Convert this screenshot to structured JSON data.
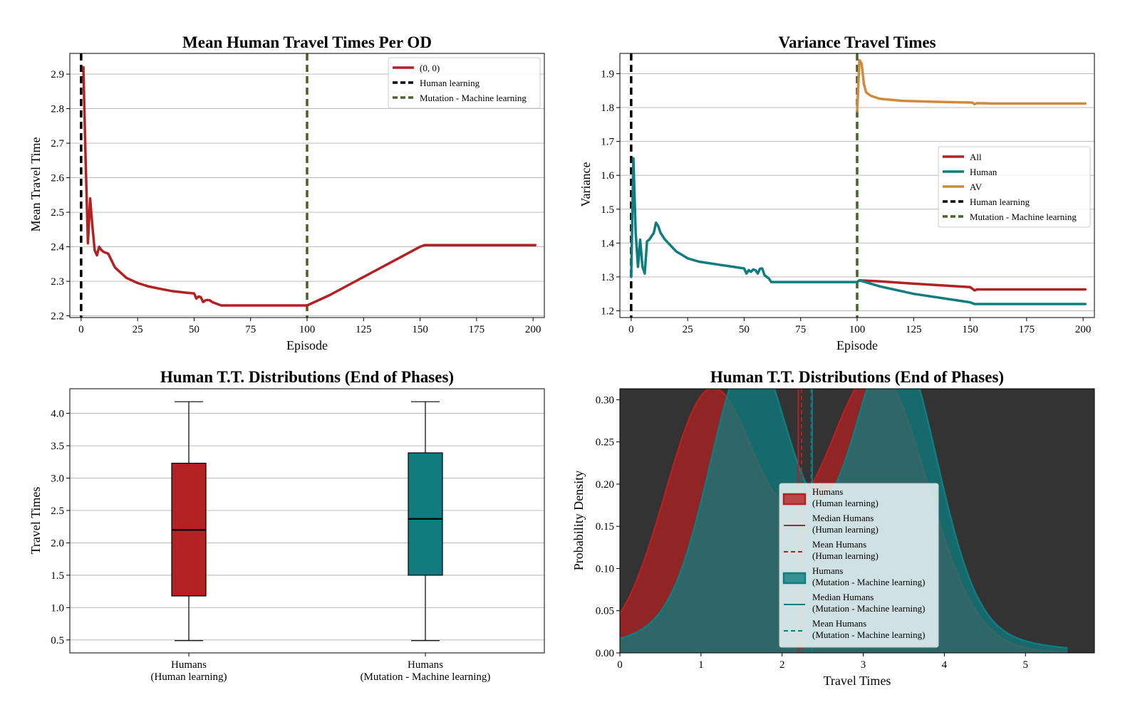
{
  "colors": {
    "all": "#b22222",
    "human": "#0f7d80",
    "av": "#d08a3e",
    "human_learning_line": "#000000",
    "mutation_line": "#4a6128",
    "grid": "#b0b0b0",
    "dark_bg": "#333333"
  },
  "chart_data": [
    {
      "type": "line",
      "title": "Mean Human Travel Times Per OD",
      "xlabel": "Episode",
      "ylabel": "Mean Travel Time",
      "xlim": [
        -5,
        205
      ],
      "ylim": [
        2.195,
        2.96
      ],
      "xticks": [
        0,
        25,
        50,
        75,
        100,
        125,
        150,
        175,
        200
      ],
      "yticks": [
        2.2,
        2.3,
        2.4,
        2.5,
        2.6,
        2.7,
        2.8,
        2.9
      ],
      "xtick_labels": [
        "0",
        "25",
        "50",
        "75",
        "100",
        "125",
        "150",
        "175",
        "200"
      ],
      "ytick_labels": [
        "2.2",
        "2.3",
        "2.4",
        "2.5",
        "2.6",
        "2.7",
        "2.8",
        "2.9"
      ],
      "grid": "horizontal",
      "legend_position": "top-right",
      "series": [
        {
          "name": "(0, 0)",
          "color_key": "all",
          "x": [
            1,
            2,
            3,
            4,
            5,
            6,
            7,
            8,
            9,
            10,
            12,
            15,
            20,
            25,
            30,
            35,
            40,
            45,
            50,
            51,
            52,
            53,
            54,
            55,
            56,
            57,
            58,
            60,
            62,
            63,
            70,
            80,
            90,
            100,
            110,
            120,
            130,
            140,
            150,
            152,
            160,
            180,
            201
          ],
          "y": [
            2.92,
            2.65,
            2.41,
            2.54,
            2.46,
            2.39,
            2.375,
            2.4,
            2.39,
            2.385,
            2.38,
            2.34,
            2.31,
            2.295,
            2.285,
            2.278,
            2.272,
            2.268,
            2.265,
            2.25,
            2.256,
            2.254,
            2.24,
            2.245,
            2.246,
            2.245,
            2.24,
            2.235,
            2.23,
            2.23,
            2.23,
            2.23,
            2.23,
            2.23,
            2.26,
            2.295,
            2.33,
            2.365,
            2.4,
            2.405,
            2.405,
            2.405,
            2.405
          ]
        }
      ],
      "vlines": [
        {
          "name": "Human learning",
          "x": 0,
          "color_key": "human_learning_line"
        },
        {
          "name": "Mutation - Machine learning",
          "x": 100,
          "color_key": "mutation_line"
        }
      ]
    },
    {
      "type": "line",
      "title": "Variance Travel Times",
      "xlabel": "Episode",
      "ylabel": "Variance",
      "xlim": [
        -5,
        205
      ],
      "ylim": [
        1.18,
        1.96
      ],
      "xticks": [
        0,
        25,
        50,
        75,
        100,
        125,
        150,
        175,
        200
      ],
      "yticks": [
        1.2,
        1.3,
        1.4,
        1.5,
        1.6,
        1.7,
        1.8,
        1.9
      ],
      "xtick_labels": [
        "0",
        "25",
        "50",
        "75",
        "100",
        "125",
        "150",
        "175",
        "200"
      ],
      "ytick_labels": [
        "1.2",
        "1.3",
        "1.4",
        "1.5",
        "1.6",
        "1.7",
        "1.8",
        "1.9"
      ],
      "grid": "horizontal",
      "legend_position": "center-right",
      "series": [
        {
          "name": "All",
          "color_key": "all",
          "x": [
            100,
            101,
            110,
            125,
            150,
            152,
            153,
            160,
            201
          ],
          "y": [
            1.285,
            1.29,
            1.287,
            1.28,
            1.27,
            1.26,
            1.263,
            1.263,
            1.263
          ]
        },
        {
          "name": "Human",
          "color_key": "human",
          "x": [
            0,
            1,
            2,
            3,
            4,
            5,
            6,
            7,
            8,
            10,
            11,
            12,
            13,
            15,
            20,
            25,
            30,
            40,
            50,
            51,
            52,
            53,
            54,
            55,
            56,
            57,
            58,
            59,
            60,
            61,
            62,
            63,
            70,
            80,
            90,
            100,
            101,
            110,
            125,
            150,
            152,
            153,
            160,
            201
          ],
          "y": [
            1.3,
            1.65,
            1.43,
            1.33,
            1.41,
            1.33,
            1.31,
            1.405,
            1.41,
            1.43,
            1.46,
            1.45,
            1.43,
            1.41,
            1.375,
            1.355,
            1.345,
            1.335,
            1.325,
            1.31,
            1.32,
            1.315,
            1.322,
            1.32,
            1.31,
            1.324,
            1.325,
            1.305,
            1.3,
            1.295,
            1.285,
            1.285,
            1.285,
            1.285,
            1.285,
            1.285,
            1.29,
            1.272,
            1.25,
            1.225,
            1.22,
            1.22,
            1.22,
            1.22
          ]
        },
        {
          "name": "AV",
          "color_key": "av",
          "x": [
            100,
            101,
            102,
            103,
            104,
            106,
            110,
            120,
            135,
            150,
            151,
            152,
            153,
            160,
            201
          ],
          "y": [
            1.79,
            1.94,
            1.93,
            1.87,
            1.845,
            1.835,
            1.826,
            1.82,
            1.817,
            1.815,
            1.815,
            1.81,
            1.813,
            1.812,
            1.812
          ]
        }
      ],
      "vlines": [
        {
          "name": "Human learning",
          "x": 0,
          "color_key": "human_learning_line"
        },
        {
          "name": "Mutation - Machine learning",
          "x": 100,
          "color_key": "mutation_line"
        }
      ]
    },
    {
      "type": "box",
      "title": "Human T.T. Distributions (End of Phases)",
      "xlabel": "",
      "ylabel": "Travel Times",
      "ylim": [
        0.3,
        4.38
      ],
      "yticks": [
        0.5,
        1.0,
        1.5,
        2.0,
        2.5,
        3.0,
        3.5,
        4.0
      ],
      "ytick_labels": [
        "0.5",
        "1.0",
        "1.5",
        "2.0",
        "2.5",
        "3.0",
        "3.5",
        "4.0"
      ],
      "grid": "horizontal",
      "categories": [
        [
          "Humans",
          "(Human learning)"
        ],
        [
          "Humans",
          "(Mutation - Machine learning)"
        ]
      ],
      "boxes": [
        {
          "whisker_low": 0.49,
          "q1": 1.18,
          "median": 2.2,
          "q3": 3.23,
          "whisker_high": 4.18,
          "color_key": "all"
        },
        {
          "whisker_low": 0.49,
          "q1": 1.5,
          "median": 2.37,
          "q3": 3.39,
          "whisker_high": 4.18,
          "color_key": "human"
        }
      ]
    },
    {
      "type": "area",
      "title": "Human T.T. Distributions (End of Phases)",
      "xlabel": "Travel Times",
      "ylabel": "Probability Density",
      "xlim": [
        0,
        5.85
      ],
      "ylim": [
        0,
        0.313
      ],
      "xticks": [
        0,
        1,
        2,
        3,
        4,
        5
      ],
      "yticks": [
        0,
        0.05,
        0.1,
        0.15,
        0.2,
        0.25,
        0.3
      ],
      "xtick_labels": [
        "0",
        "1",
        "2",
        "3",
        "4",
        "5"
      ],
      "ytick_labels": [
        "0.00",
        "0.05",
        "0.10",
        "0.15",
        "0.20",
        "0.25",
        "0.30"
      ],
      "background": "dark",
      "legend_position": "center",
      "series": [
        {
          "name": [
            "Humans",
            "(Human learning)"
          ],
          "color_key": "all",
          "median": 2.2,
          "mean": 2.24,
          "components": [
            {
              "mu": 1.1,
              "sigma": 0.55,
              "w": 0.37
            },
            {
              "mu": 3.2,
              "sigma": 0.6,
              "w": 0.43
            },
            {
              "mu": 2.2,
              "sigma": 1.1,
              "w": 0.2
            }
          ]
        },
        {
          "name": [
            "Humans",
            "(Mutation - Machine learning)"
          ],
          "color_key": "human",
          "median": 2.37,
          "mean": 2.36,
          "components": [
            {
              "mu": 1.6,
              "sigma": 0.48,
              "w": 0.36
            },
            {
              "mu": 3.4,
              "sigma": 0.5,
              "w": 0.4
            },
            {
              "mu": 2.4,
              "sigma": 1.4,
              "w": 0.24
            }
          ]
        }
      ],
      "legend": [
        {
          "kind": "patch",
          "label": [
            "Humans",
            "(Human learning)"
          ],
          "color_key": "all"
        },
        {
          "kind": "solid",
          "label": [
            "Median Humans",
            "(Human learning)"
          ],
          "color_key": "all"
        },
        {
          "kind": "dashed",
          "label": [
            "Mean Humans",
            "(Human learning)"
          ],
          "color_key": "all"
        },
        {
          "kind": "patch",
          "label": [
            "Humans",
            "(Mutation - Machine learning)"
          ],
          "color_key": "human"
        },
        {
          "kind": "solid",
          "label": [
            "Median Humans",
            "(Mutation - Machine learning)"
          ],
          "color_key": "human"
        },
        {
          "kind": "dashed",
          "label": [
            "Mean Humans",
            "(Mutation - Machine learning)"
          ],
          "color_key": "human"
        }
      ]
    }
  ]
}
